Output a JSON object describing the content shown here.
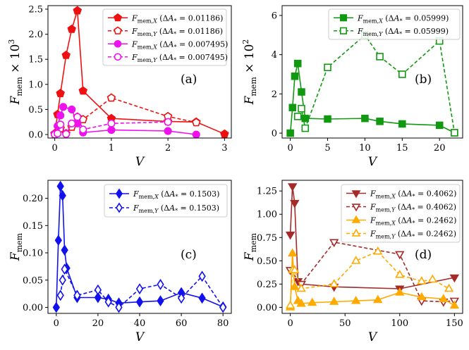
{
  "chart_data": [
    {
      "type": "line",
      "panel_label": "(a)",
      "ylabel_main": "F",
      "ylabel_sub": "mem",
      "ylabel_suffix": " × 10",
      "ylabel_exp": "3",
      "xlabel": "V",
      "xlim": [
        -0.12,
        3.12
      ],
      "ylim": [
        -0.07,
        2.57
      ],
      "xticks": [
        0,
        1,
        2,
        3
      ],
      "xtick_labels": [
        "0",
        "1",
        "2",
        "3"
      ],
      "yticks": [
        0.0,
        0.5,
        1.0,
        1.5,
        2.0,
        2.5
      ],
      "ytick_labels": [
        "0.0",
        "0.5",
        "1.0",
        "1.5",
        "2.0",
        "2.5"
      ],
      "legend_position": "top-right",
      "series": [
        {
          "name": "F_mem,X (ΔA_* = 0.01186)",
          "leg_comp": "X",
          "leg_value": "0.01186",
          "color": "#ee1111",
          "marker": "pentagon",
          "filled": true,
          "dashed": false,
          "x": [
            0,
            0.05,
            0.1,
            0.2,
            0.3,
            0.4,
            0.5,
            1,
            2,
            2.5,
            3
          ],
          "y": [
            0.02,
            0.4,
            0.82,
            1.58,
            2.1,
            2.47,
            0.87,
            0.32,
            0.26,
            0.25,
            0.01
          ]
        },
        {
          "name": "F_mem,Y (ΔA_* = 0.01186)",
          "leg_comp": "Y",
          "leg_value": "0.01186",
          "color": "#ee1111",
          "marker": "pentagon",
          "filled": false,
          "dashed": true,
          "x": [
            0,
            0.1,
            0.2,
            0.3,
            0.4,
            0.5,
            1,
            2,
            2.5
          ],
          "y": [
            0.01,
            0.12,
            0.02,
            0.15,
            0.35,
            0.3,
            0.73,
            0.36,
            0.24
          ]
        },
        {
          "name": "F_mem,X (ΔA_* = 0.007495)",
          "leg_comp": "X",
          "leg_value": "0.007495",
          "color": "#ee11ee",
          "marker": "circle",
          "filled": true,
          "dashed": false,
          "x": [
            0,
            0.05,
            0.1,
            0.15,
            0.3,
            0.4,
            0.5,
            1,
            2,
            2.5
          ],
          "y": [
            0.01,
            0.17,
            0.38,
            0.55,
            0.5,
            0.22,
            0.04,
            0.09,
            0.07,
            0.0
          ]
        },
        {
          "name": "F_mem,Y (ΔA_* = 0.007495)",
          "leg_comp": "Y",
          "leg_value": "0.007495",
          "color": "#ee11ee",
          "marker": "circle",
          "filled": false,
          "dashed": true,
          "x": [
            0,
            0.05,
            0.1,
            0.2,
            0.3,
            0.4,
            0.5,
            1,
            2
          ],
          "y": [
            0.0,
            0.02,
            0.2,
            0.01,
            0.22,
            0.35,
            0.1,
            0.22,
            0.25
          ]
        }
      ]
    },
    {
      "type": "line",
      "panel_label": "(b)",
      "ylabel_main": "F",
      "ylabel_sub": "mem",
      "ylabel_suffix": " × 10",
      "ylabel_exp": "2",
      "xlabel": "V",
      "xlim": [
        -1.1,
        23.1
      ],
      "ylim": [
        -0.25,
        6.5
      ],
      "xticks": [
        0,
        5,
        10,
        15,
        20
      ],
      "xtick_labels": [
        "0",
        "5",
        "10",
        "15",
        "20"
      ],
      "yticks": [
        0,
        2,
        4,
        6
      ],
      "ytick_labels": [
        "0",
        "2",
        "4",
        "6"
      ],
      "legend_position": "top-right",
      "series": [
        {
          "name": "F_mem,X (ΔA_* = 0.05999)",
          "leg_comp": "X",
          "leg_value": "0.05999",
          "color": "#119911",
          "marker": "square",
          "filled": true,
          "dashed": false,
          "x": [
            0,
            0.3,
            0.6,
            1,
            1.5,
            2,
            5,
            10,
            12,
            15,
            20,
            22
          ],
          "y": [
            0.0,
            1.3,
            2.9,
            3.55,
            2.1,
            0.75,
            0.72,
            0.75,
            0.6,
            0.47,
            0.4,
            0.02
          ]
        },
        {
          "name": "F_mem,Y (ΔA_* = 0.05999)",
          "leg_comp": "Y",
          "leg_value": "0.05999",
          "color": "#119911",
          "marker": "square",
          "filled": false,
          "dashed": true,
          "x": [
            1,
            1.5,
            2,
            5,
            10,
            12,
            15,
            20,
            22
          ],
          "y": [
            0.85,
            1.25,
            0.25,
            3.35,
            5.0,
            3.9,
            3.0,
            4.7,
            0.02
          ]
        }
      ]
    },
    {
      "type": "line",
      "panel_label": "(c)",
      "ylabel_main": "F",
      "ylabel_sub": "mem",
      "ylabel_suffix": "",
      "ylabel_exp": "",
      "xlabel": "V",
      "xlim": [
        -4,
        84
      ],
      "ylim": [
        -0.011,
        0.233
      ],
      "xticks": [
        0,
        20,
        40,
        60,
        80
      ],
      "xtick_labels": [
        "0",
        "20",
        "40",
        "60",
        "80"
      ],
      "yticks": [
        0.0,
        0.05,
        0.1,
        0.15,
        0.2
      ],
      "ytick_labels": [
        "0.00",
        "0.05",
        "0.10",
        "0.15",
        "0.20"
      ],
      "legend_position": "top-right",
      "series": [
        {
          "name": "F_mem,X (ΔA_* = 0.1503)",
          "leg_comp": "X",
          "leg_value": "0.1503",
          "color": "#1111ee",
          "marker": "diamond",
          "filled": true,
          "dashed": false,
          "x": [
            0,
            1,
            2,
            3,
            4,
            5,
            10,
            20,
            25,
            30,
            40,
            50,
            60,
            70,
            80
          ],
          "y": [
            0.0,
            0.123,
            0.222,
            0.205,
            0.105,
            0.072,
            0.018,
            0.018,
            0.015,
            0.008,
            0.01,
            0.012,
            0.027,
            0.017,
            0.001
          ]
        },
        {
          "name": "F_mem,Y (ΔA_* = 0.1503)",
          "leg_comp": "Y",
          "leg_value": "0.1503",
          "color": "#1111ee",
          "marker": "diamond",
          "filled": false,
          "dashed": true,
          "x": [
            2,
            3,
            4,
            10,
            20,
            25,
            30,
            40,
            50,
            60,
            70,
            80
          ],
          "y": [
            0.022,
            0.05,
            0.07,
            0.022,
            0.032,
            0.01,
            0.0,
            0.034,
            0.042,
            0.017,
            0.057,
            0.0
          ]
        }
      ]
    },
    {
      "type": "line",
      "panel_label": "(d)",
      "ylabel_main": "F",
      "ylabel_sub": "mem",
      "ylabel_suffix": "",
      "ylabel_exp": "",
      "xlabel": "V",
      "xlim": [
        -7.5,
        157.5
      ],
      "ylim": [
        -0.065,
        1.365
      ],
      "xticks": [
        0,
        50,
        100,
        150
      ],
      "xtick_labels": [
        "0",
        "50",
        "100",
        "150"
      ],
      "yticks": [
        0.0,
        0.25,
        0.5,
        0.75,
        1.0,
        1.25
      ],
      "ytick_labels": [
        "0.00",
        "0.25",
        "0.50",
        "0.75",
        "1.00",
        "1.25"
      ],
      "legend_position": "top-right",
      "series": [
        {
          "name": "F_mem,X (ΔA_* = 0.4062)",
          "leg_comp": "X",
          "leg_value": "0.4062",
          "color": "#a52a2a",
          "marker": "triangle-down",
          "filled": true,
          "dashed": false,
          "x": [
            0,
            2,
            4,
            7,
            10,
            40,
            100,
            150
          ],
          "y": [
            0.78,
            1.3,
            1.12,
            0.28,
            0.25,
            0.22,
            0.2,
            0.32
          ]
        },
        {
          "name": "F_mem,Y (ΔA_* = 0.4062)",
          "leg_comp": "Y",
          "leg_value": "0.4062",
          "color": "#a52a2a",
          "marker": "triangle-down",
          "filled": false,
          "dashed": true,
          "x": [
            0,
            10,
            40,
            100,
            120,
            140,
            150
          ],
          "y": [
            0.4,
            0.25,
            0.7,
            0.57,
            0.07,
            0.06,
            0.07
          ]
        },
        {
          "name": "F_mem,X (ΔA_* = 0.2462)",
          "leg_comp": "X",
          "leg_value": "0.2462",
          "color": "#ffaa00",
          "marker": "triangle-up",
          "filled": true,
          "dashed": false,
          "x": [
            0,
            2,
            4,
            7,
            10,
            20,
            40,
            60,
            80,
            100,
            120,
            140,
            150
          ],
          "y": [
            0.0,
            0.58,
            0.22,
            0.07,
            0.04,
            0.05,
            0.06,
            0.07,
            0.08,
            0.16,
            0.11,
            0.09,
            0.02
          ]
        },
        {
          "name": "F_mem,Y (ΔA_* = 0.2462)",
          "leg_comp": "Y",
          "leg_value": "0.2462",
          "color": "#ffaa00",
          "marker": "triangle-up",
          "filled": false,
          "dashed": true,
          "x": [
            0,
            2,
            4,
            10,
            40,
            60,
            80,
            100,
            120,
            130,
            145
          ],
          "y": [
            0.02,
            0.4,
            0.4,
            0.2,
            0.25,
            0.5,
            0.6,
            0.35,
            0.28,
            0.3,
            0.2
          ]
        }
      ]
    }
  ]
}
